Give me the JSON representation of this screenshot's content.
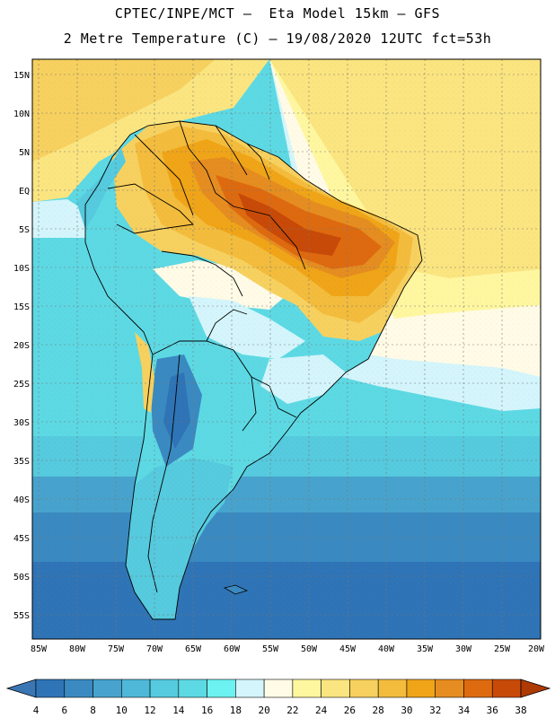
{
  "titles": {
    "line1": "CPTEC/INPE/MCT –  Eta Model 15km – GFS",
    "line2": "2 Metre Temperature (C) – 19/08/2020 12UTC fct=53h"
  },
  "chart_data": {
    "type": "heatmap",
    "variable": "2 Metre Temperature",
    "units": "C",
    "lat_labels": [
      "15N",
      "10N",
      "5N",
      "EQ",
      "5S",
      "10S",
      "15S",
      "20S",
      "25S",
      "30S",
      "35S",
      "40S",
      "45S",
      "50S",
      "55S"
    ],
    "lon_labels": [
      "85W",
      "80W",
      "75W",
      "70W",
      "65W",
      "60W",
      "55W",
      "50W",
      "45W",
      "40W",
      "35W",
      "30W",
      "25W",
      "20W"
    ],
    "colorbar": {
      "ticks": [
        "4",
        "6",
        "8",
        "10",
        "12",
        "14",
        "16",
        "18",
        "20",
        "22",
        "24",
        "26",
        "28",
        "30",
        "32",
        "34",
        "36",
        "38"
      ],
      "colors": [
        "#3a76b4",
        "#2f74b6",
        "#3a8ac1",
        "#47a3cd",
        "#4fb8d8",
        "#56cade",
        "#5dd9e4",
        "#6cf2f0",
        "#d3f5fb",
        "#fffbe6",
        "#fff7a0",
        "#fbe580",
        "#f7d15f",
        "#f3bc3d",
        "#f0a518",
        "#e58d20",
        "#de6a10",
        "#c84a08",
        "#ae3a05"
      ]
    }
  }
}
